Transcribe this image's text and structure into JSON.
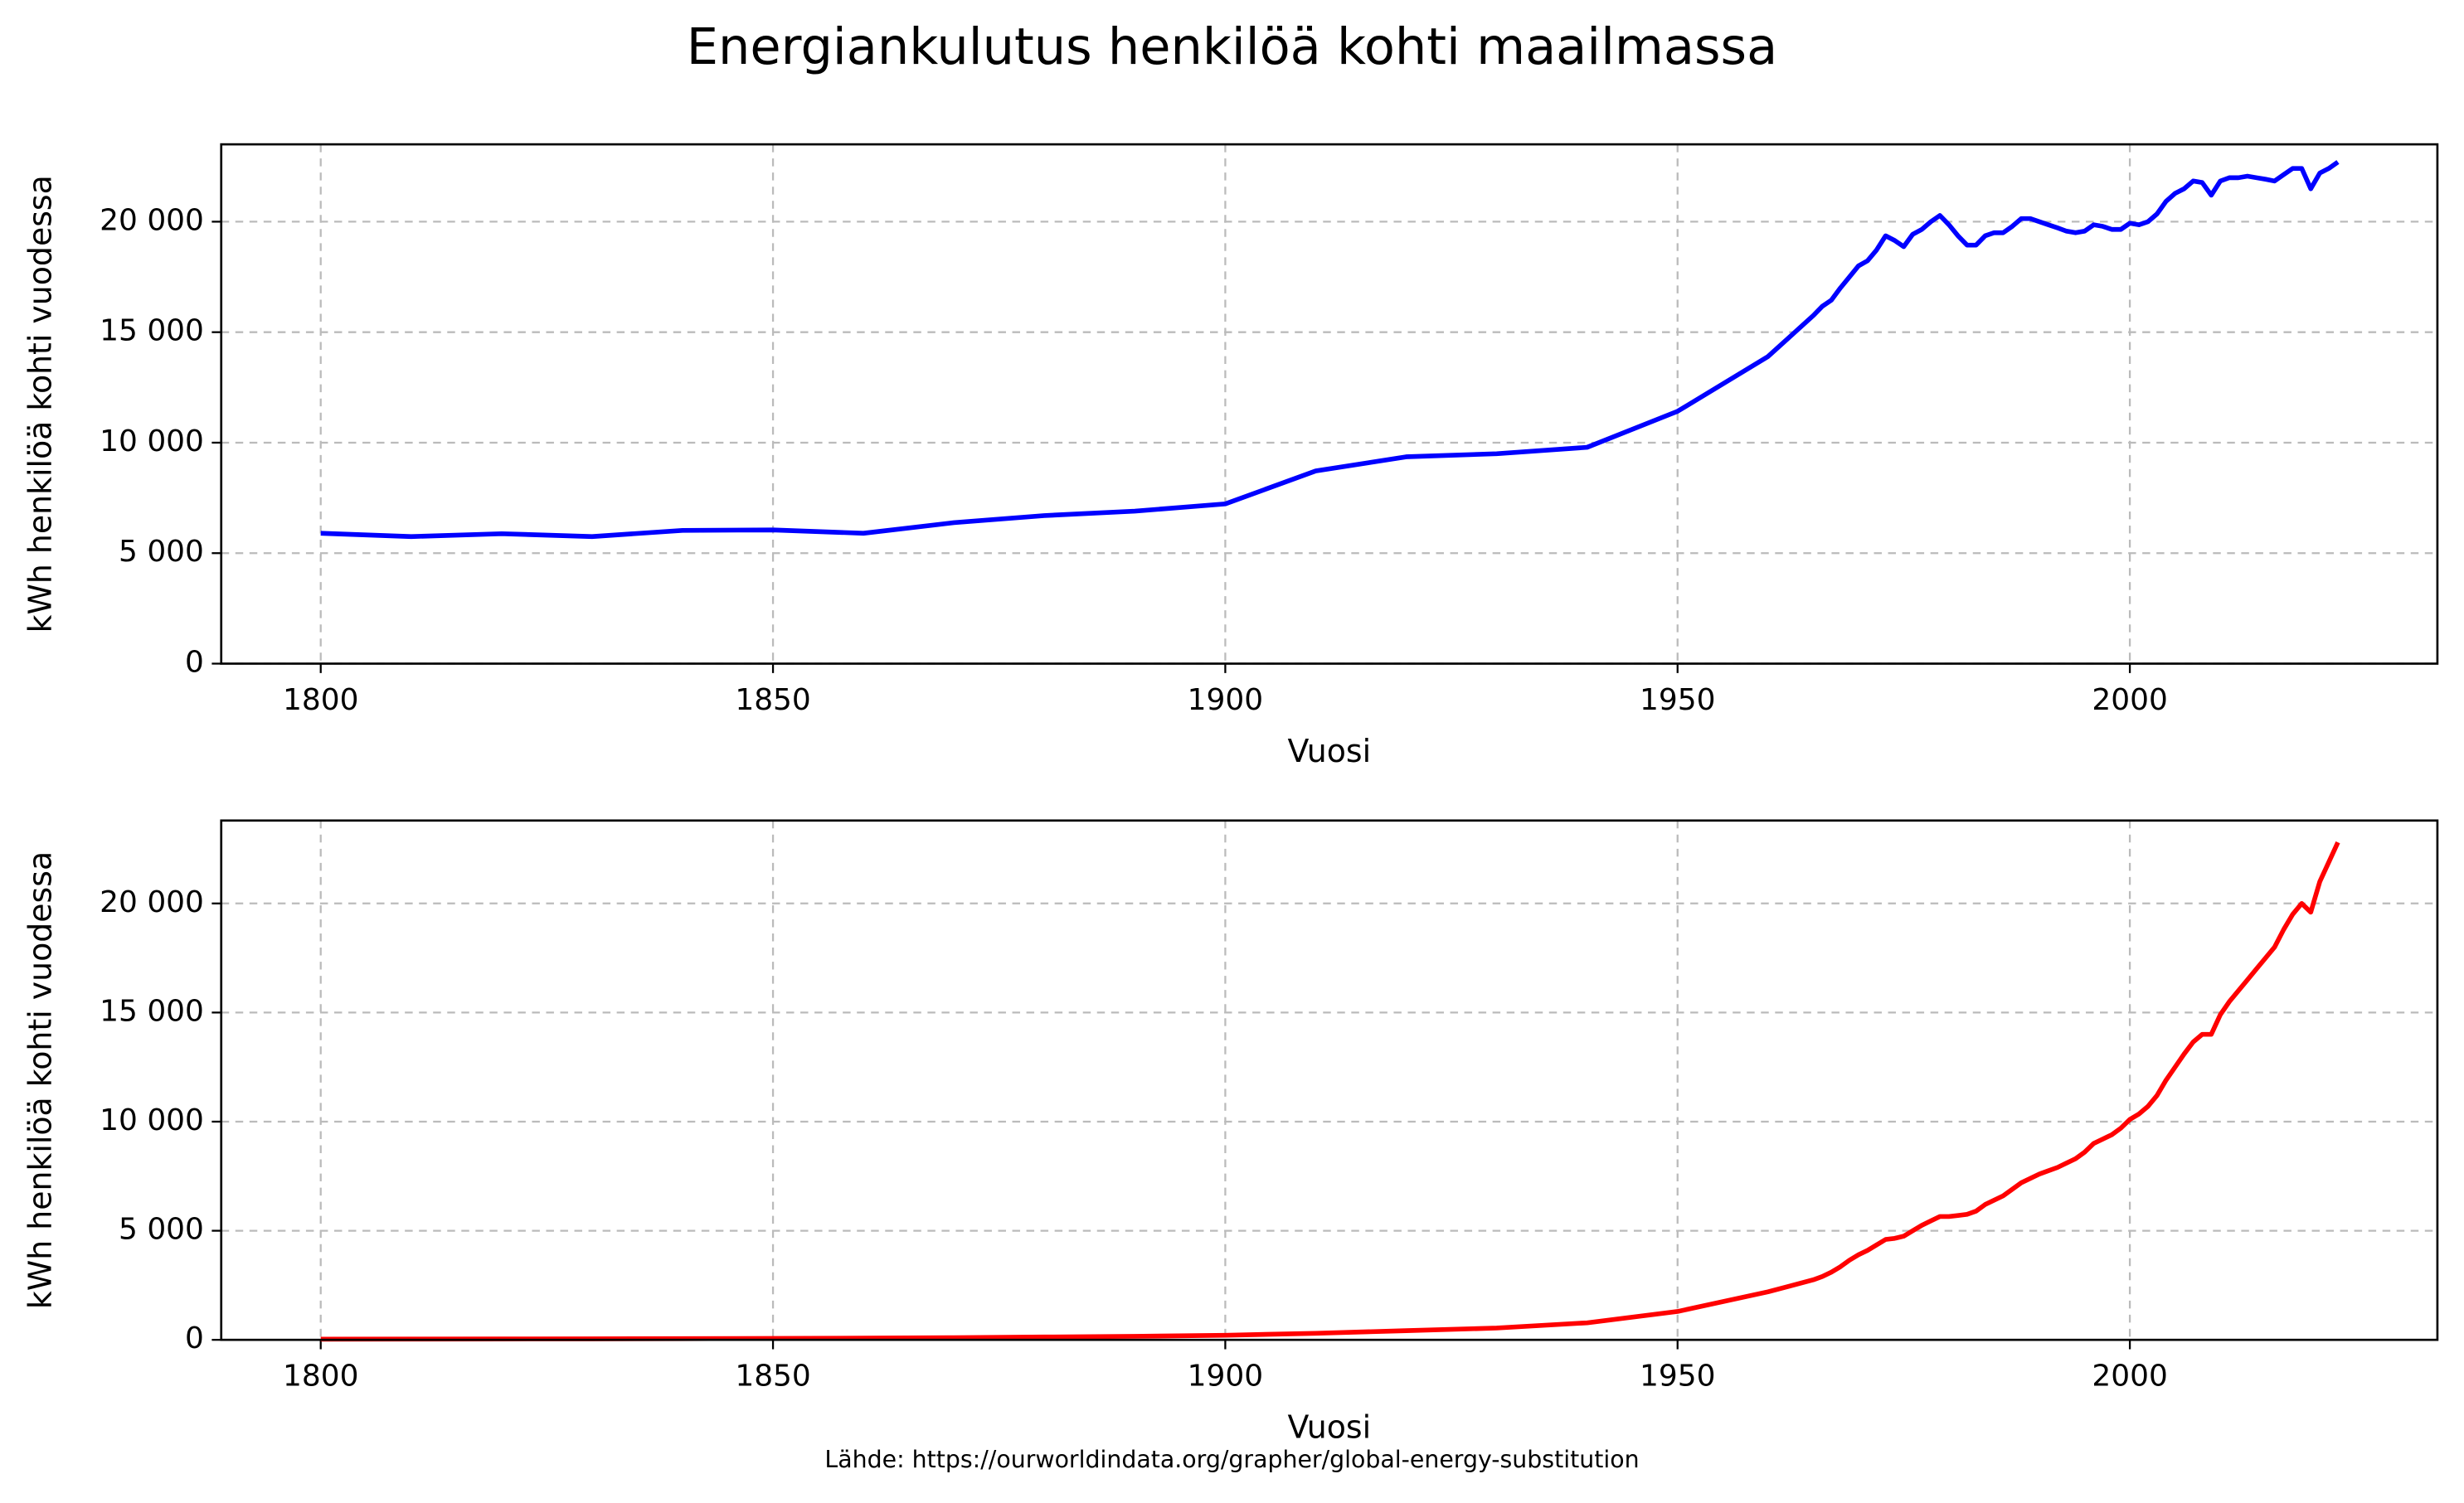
{
  "title": "Energiankulutus henkilöä kohti maailmassa",
  "source": "Lähde: https://ourworldindata.org/grapher/global-energy-substitution",
  "chart_data": [
    {
      "type": "line",
      "color": "#0000ff",
      "xlabel": "Vuosi",
      "ylabel": "kWh henkilöä kohti vuodessa",
      "grid": true,
      "xlim": [
        1789,
        2034
      ],
      "ylim": [
        0,
        23500
      ],
      "xticks": [
        1800,
        1850,
        1900,
        1950,
        2000
      ],
      "yticks": [
        0,
        {
          "value": 5000,
          "label": "5 000"
        },
        {
          "value": 10000,
          "label": "10 000"
        },
        {
          "value": 15000,
          "label": "15 000"
        },
        {
          "value": 20000,
          "label": "20 000"
        }
      ],
      "x": [
        1800,
        1810,
        1820,
        1830,
        1840,
        1850,
        1860,
        1870,
        1880,
        1890,
        1900,
        1910,
        1920,
        1930,
        1940,
        1950,
        1960,
        1965,
        1966,
        1967,
        1968,
        1969,
        1970,
        1971,
        1972,
        1973,
        1974,
        1975,
        1976,
        1977,
        1978,
        1979,
        1980,
        1981,
        1982,
        1983,
        1984,
        1985,
        1986,
        1987,
        1988,
        1989,
        1990,
        1991,
        1992,
        1993,
        1994,
        1995,
        1996,
        1997,
        1998,
        1999,
        2000,
        2001,
        2002,
        2003,
        2004,
        2005,
        2006,
        2007,
        2008,
        2009,
        2010,
        2011,
        2012,
        2013,
        2014,
        2015,
        2016,
        2017,
        2018,
        2019,
        2020,
        2021,
        2022,
        2023
      ],
      "values": [
        5900,
        5750,
        5880,
        5750,
        6030,
        6050,
        5900,
        6380,
        6700,
        6900,
        7230,
        8720,
        9360,
        9500,
        9790,
        11420,
        13900,
        15750,
        16170,
        16450,
        17000,
        17500,
        18000,
        18230,
        18720,
        19360,
        19150,
        18870,
        19430,
        19650,
        20000,
        20280,
        19860,
        19360,
        18940,
        18940,
        19360,
        19500,
        19500,
        19790,
        20140,
        20140,
        20000,
        19860,
        19720,
        19570,
        19500,
        19570,
        19860,
        19790,
        19650,
        19650,
        19930,
        19860,
        20000,
        20350,
        20920,
        21280,
        21490,
        21840,
        21770,
        21200,
        21840,
        21990,
        21990,
        22060,
        21990,
        21920,
        21840,
        22130,
        22410,
        22410,
        21490,
        22200,
        22410,
        22700
      ]
    },
    {
      "type": "line",
      "color": "#ff0000",
      "xlabel": "Vuosi",
      "ylabel": "kWh henkilöä kohti vuodessa",
      "grid": true,
      "xlim": [
        1789,
        2034
      ],
      "ylim": [
        0,
        23800
      ],
      "xticks": [
        1800,
        1850,
        1900,
        1950,
        2000
      ],
      "yticks": [
        0,
        {
          "value": 5000,
          "label": "5 000"
        },
        {
          "value": 10000,
          "label": "10 000"
        },
        {
          "value": 15000,
          "label": "15 000"
        },
        {
          "value": 20000,
          "label": "20 000"
        }
      ],
      "x": [
        1800,
        1810,
        1820,
        1830,
        1840,
        1850,
        1860,
        1870,
        1880,
        1890,
        1900,
        1910,
        1920,
        1930,
        1940,
        1950,
        1960,
        1965,
        1966,
        1967,
        1968,
        1969,
        1970,
        1971,
        1972,
        1973,
        1974,
        1975,
        1976,
        1977,
        1978,
        1979,
        1980,
        1981,
        1982,
        1983,
        1984,
        1985,
        1986,
        1987,
        1988,
        1989,
        1990,
        1991,
        1992,
        1993,
        1994,
        1995,
        1996,
        1997,
        1998,
        1999,
        2000,
        2001,
        2002,
        2003,
        2004,
        2005,
        2006,
        2007,
        2008,
        2009,
        2010,
        2011,
        2012,
        2013,
        2014,
        2015,
        2016,
        2017,
        2018,
        2019,
        2020,
        2021,
        2022,
        2023
      ],
      "values": [
        30,
        35,
        40,
        45,
        55,
        65,
        80,
        100,
        130,
        160,
        210,
        300,
        420,
        540,
        780,
        1300,
        2200,
        2750,
        2900,
        3100,
        3350,
        3650,
        3900,
        4100,
        4350,
        4600,
        4650,
        4750,
        5000,
        5250,
        5450,
        5650,
        5650,
        5700,
        5750,
        5900,
        6200,
        6400,
        6600,
        6900,
        7200,
        7400,
        7600,
        7750,
        7900,
        8100,
        8300,
        8600,
        9000,
        9200,
        9400,
        9700,
        10100,
        10350,
        10700,
        11200,
        11900,
        12500,
        13100,
        13650,
        14000,
        14000,
        14900,
        15500,
        16000,
        16500,
        17000,
        17500,
        18000,
        18800,
        19500,
        20000,
        19600,
        21000,
        21900,
        22800
      ]
    }
  ]
}
